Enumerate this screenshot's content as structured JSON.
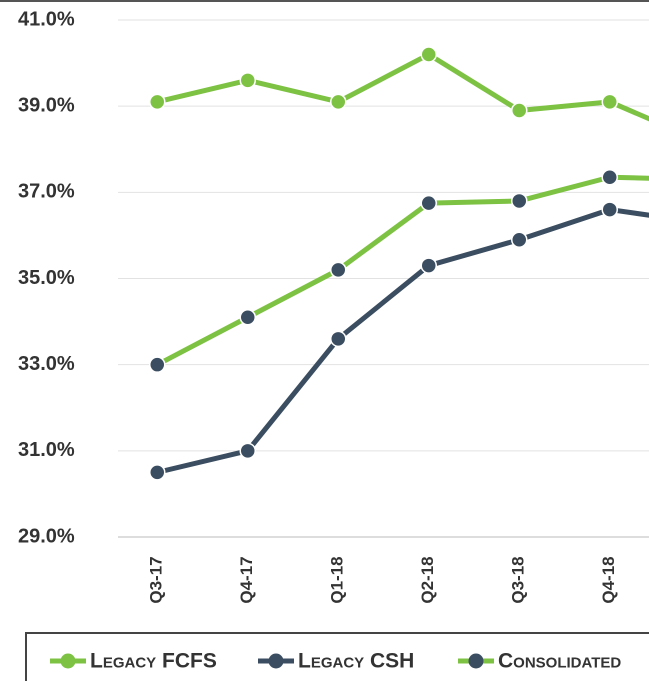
{
  "chart_data": {
    "type": "line",
    "categories": [
      "Q3-17",
      "Q4-17",
      "Q1-18",
      "Q2-18",
      "Q3-18",
      "Q4-18",
      null
    ],
    "series": [
      {
        "name": "Legacy FCFS",
        "color": "#7dc242",
        "marker_color": "#7dc242",
        "values": [
          39.1,
          39.6,
          39.1,
          40.2,
          38.9,
          39.1,
          38.2
        ]
      },
      {
        "name": "Legacy CSH",
        "color": "#3b4d60",
        "marker_color": "#3b4d60",
        "values": [
          30.5,
          31.0,
          33.6,
          35.3,
          35.9,
          36.6,
          36.3
        ]
      },
      {
        "name": "Consolidated",
        "color": "#7dc242",
        "marker_color": "#3b4d60",
        "values": [
          33.0,
          34.1,
          35.2,
          36.75,
          36.8,
          37.35,
          37.3
        ]
      }
    ],
    "ylim": [
      29,
      41
    ],
    "yticks": [
      {
        "value": 29,
        "label": "29.0%"
      },
      {
        "value": 31,
        "label": "31.0%"
      },
      {
        "value": 33,
        "label": "33.0%"
      },
      {
        "value": 35,
        "label": "35.0%"
      },
      {
        "value": 37,
        "label": "37.0%"
      },
      {
        "value": 39,
        "label": "39.0%"
      },
      {
        "value": 41,
        "label": "41.0%"
      }
    ],
    "grid": true,
    "legend": "bottom"
  }
}
